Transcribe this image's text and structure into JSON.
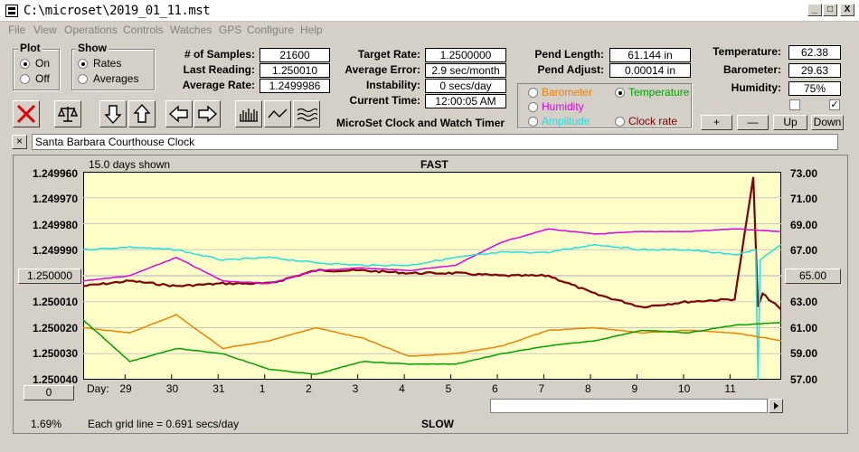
{
  "window": {
    "title": "C:\\microset\\2019_01_11.mst",
    "minimize": "_",
    "maximize": "□",
    "close": "X"
  },
  "menu": [
    "File",
    "View",
    "Operations",
    "Controls",
    "Watches",
    "GPS",
    "Configure",
    "Help"
  ],
  "plot_group": {
    "title": "Plot",
    "on": "On",
    "off": "Off",
    "selected": "On"
  },
  "show_group": {
    "title": "Show",
    "rates": "Rates",
    "averages": "Averages",
    "selected": "Rates"
  },
  "stats": {
    "samples_label": "# of Samples:",
    "samples": "21600",
    "last_reading_label": "Last Reading:",
    "last_reading": "1.250010",
    "average_rate_label": "Average Rate:",
    "average_rate": "1.2499986"
  },
  "timer": {
    "target_rate_label": "Target Rate:",
    "target_rate": "1.2500000",
    "average_error_label": "Average Error:",
    "average_error": "2.9 sec/month",
    "instability_label": "Instability:",
    "instability": "0 secs/day",
    "current_time_label": "Current Time:",
    "current_time": "12:00:05 AM",
    "app_name": "MicroSet Clock and Watch Timer"
  },
  "pendulum": {
    "length_label": "Pend Length:",
    "length": "61.144 in",
    "adjust_label": "Pend Adjust:",
    "adjust": "0.00014 in"
  },
  "series_select": {
    "barometer": "Barometer",
    "temperature": "Temperature",
    "humidity": "Humidity",
    "amplitude": "Amplitude",
    "clock_rate": "Clock rate",
    "selected": "Temperature",
    "colors": {
      "barometer": "#f08000",
      "temperature": "#00a000",
      "humidity": "#e000e0",
      "amplitude": "#20e0e0",
      "clock_rate": "#800000"
    }
  },
  "environment": {
    "temperature_label": "Temperature:",
    "temperature": "62.38",
    "barometer_label": "Barometer:",
    "barometer": "29.63",
    "humidity_label": "Humidity:",
    "humidity": "75%",
    "check1": false,
    "check2": true
  },
  "scale_buttons": {
    "plus": "+",
    "minus": "—",
    "up": "Up",
    "down": "Down"
  },
  "clock_name": "Santa Barbara Courthouse Clock",
  "clock_close": "×",
  "chart_header": {
    "days_shown": "15.0 days shown",
    "fast": "FAST",
    "slow": "SLOW",
    "grid_note": "Each grid line = 0.691 secs/day",
    "percent": "1.69%",
    "day_label": "Day:"
  },
  "left_axis_button": "1.250000",
  "right_axis_button": "65.00",
  "offset_button": "0",
  "chart_data": {
    "type": "line",
    "x_label": "Day",
    "x_ticks": [
      "29",
      "30",
      "31",
      "1",
      "2",
      "3",
      "4",
      "5",
      "6",
      "7",
      "8",
      "9",
      "10",
      "11"
    ],
    "left_axis": {
      "ticks": [
        "1.249960",
        "1.249970",
        "1.249980",
        "1.249990",
        "1.250000",
        "1.250010",
        "1.250020",
        "1.250030",
        "1.250040"
      ],
      "range": [
        1.24996,
        1.25004
      ]
    },
    "right_axis": {
      "ticks": [
        "73.00",
        "71.00",
        "69.00",
        "67.00",
        "65.00",
        "63.00",
        "61.00",
        "59.00",
        "57.00"
      ],
      "range": [
        57,
        73
      ]
    },
    "series": [
      {
        "name": "Clock rate",
        "color": "#800000",
        "axis": "left",
        "days": [
          0,
          1,
          2,
          3,
          4,
          5,
          6,
          7,
          8,
          9,
          10,
          11,
          12,
          13,
          14,
          14.4,
          14.5,
          14.6,
          15
        ],
        "values": [
          1.250004,
          1.250002,
          1.250004,
          1.250003,
          1.250003,
          1.249998,
          1.249998,
          1.249999,
          1.249999,
          1.25,
          1.25,
          1.250007,
          1.250012,
          1.25001,
          1.250009,
          1.249962,
          1.250012,
          1.250007,
          1.250013
        ]
      },
      {
        "name": "Humidity",
        "color": "#e000e0",
        "axis": "left",
        "days": [
          0,
          1,
          2,
          3,
          4,
          5,
          6,
          7,
          8,
          9,
          10,
          11,
          12,
          13,
          14,
          15
        ],
        "values": [
          1.250002,
          1.25,
          1.249993,
          1.250002,
          1.250003,
          1.249998,
          1.249997,
          1.249998,
          1.249996,
          1.249987,
          1.249982,
          1.249984,
          1.249983,
          1.249983,
          1.249982,
          1.249983
        ]
      },
      {
        "name": "Amplitude",
        "color": "#20e0e0",
        "axis": "left",
        "days": [
          0,
          1,
          2,
          3,
          4,
          5,
          6,
          7,
          8,
          9,
          10,
          11,
          12,
          13,
          14,
          14.45,
          14.5,
          14.55,
          15
        ],
        "values": [
          1.24999,
          1.249989,
          1.24999,
          1.249994,
          1.249993,
          1.249995,
          1.249996,
          1.249996,
          1.249993,
          1.249991,
          1.249991,
          1.249988,
          1.24999,
          1.24999,
          1.249992,
          1.24999,
          1.25004,
          1.249994,
          1.249988
        ]
      },
      {
        "name": "Barometer",
        "color": "#f08000",
        "axis": "left",
        "days": [
          0,
          1,
          2,
          3,
          4,
          5,
          6,
          7,
          8,
          9,
          10,
          11,
          12,
          13,
          14,
          15
        ],
        "values": [
          1.25002,
          1.250022,
          1.250015,
          1.250028,
          1.250025,
          1.25002,
          1.250024,
          1.250031,
          1.25003,
          1.250027,
          1.250021,
          1.25002,
          1.250022,
          1.250021,
          1.250022,
          1.250025
        ]
      },
      {
        "name": "Temperature",
        "color": "#00a000",
        "axis": "left",
        "days": [
          0,
          1,
          2,
          3,
          4,
          5,
          6,
          7,
          8,
          9,
          10,
          11,
          12,
          13,
          14,
          15
        ],
        "values": [
          1.250017,
          1.250033,
          1.250028,
          1.25003,
          1.250036,
          1.250038,
          1.250033,
          1.250034,
          1.250034,
          1.25003,
          1.250027,
          1.250025,
          1.250021,
          1.250022,
          1.250019,
          1.250018
        ]
      }
    ]
  }
}
